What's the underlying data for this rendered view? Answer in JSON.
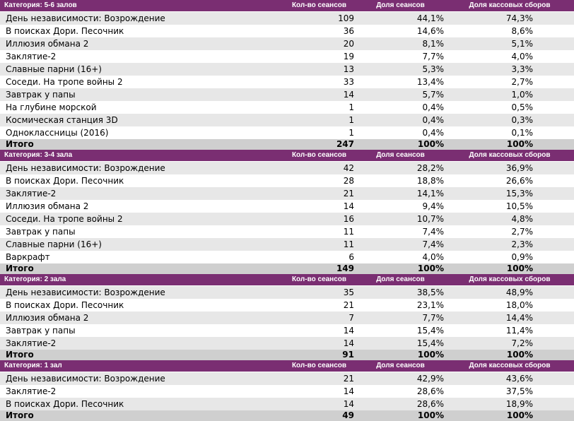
{
  "colors": {
    "header_bg": "#7a2e72",
    "header_text": "#ffffff",
    "row_alt": "#e7e7e7",
    "total_bg": "#cfcfcf"
  },
  "column_headers": {
    "sessions": "Кол-во сеансов",
    "session_share": "Доля сеансов",
    "boxoffice_share": "Доля кассовых сборов"
  },
  "sections": [
    {
      "category": "Категория: 5-6 залов",
      "rows": [
        {
          "title": "День независимости: Возрождение",
          "sessions": "109",
          "session_share": "44,1%",
          "boxoffice_share": "74,3%"
        },
        {
          "title": "В поисках Дори. Песочник",
          "sessions": "36",
          "session_share": "14,6%",
          "boxoffice_share": "8,6%"
        },
        {
          "title": "Иллюзия обмана 2",
          "sessions": "20",
          "session_share": "8,1%",
          "boxoffice_share": "5,1%"
        },
        {
          "title": "Заклятие-2",
          "sessions": "19",
          "session_share": "7,7%",
          "boxoffice_share": "4,0%"
        },
        {
          "title": "Славные парни (16+)",
          "sessions": "13",
          "session_share": "5,3%",
          "boxoffice_share": "3,3%"
        },
        {
          "title": "Соседи. На тропе войны 2",
          "sessions": "33",
          "session_share": "13,4%",
          "boxoffice_share": "2,7%"
        },
        {
          "title": "Завтрак у папы",
          "sessions": "14",
          "session_share": "5,7%",
          "boxoffice_share": "1,0%"
        },
        {
          "title": "На глубине морской",
          "sessions": "1",
          "session_share": "0,4%",
          "boxoffice_share": "0,5%"
        },
        {
          "title": "Космическая станция 3D",
          "sessions": "1",
          "session_share": "0,4%",
          "boxoffice_share": "0,3%"
        },
        {
          "title": "Одноклассницы (2016)",
          "sessions": "1",
          "session_share": "0,4%",
          "boxoffice_share": "0,1%"
        }
      ],
      "total": {
        "label": "Итого",
        "sessions": "247",
        "session_share": "100%",
        "boxoffice_share": "100%"
      }
    },
    {
      "category": "Категория: 3-4 зала",
      "rows": [
        {
          "title": "День независимости: Возрождение",
          "sessions": "42",
          "session_share": "28,2%",
          "boxoffice_share": "36,9%"
        },
        {
          "title": "В поисках Дори. Песочник",
          "sessions": "28",
          "session_share": "18,8%",
          "boxoffice_share": "26,6%"
        },
        {
          "title": "Заклятие-2",
          "sessions": "21",
          "session_share": "14,1%",
          "boxoffice_share": "15,3%"
        },
        {
          "title": "Иллюзия обмана 2",
          "sessions": "14",
          "session_share": "9,4%",
          "boxoffice_share": "10,5%"
        },
        {
          "title": "Соседи. На тропе войны 2",
          "sessions": "16",
          "session_share": "10,7%",
          "boxoffice_share": "4,8%"
        },
        {
          "title": "Завтрак у папы",
          "sessions": "11",
          "session_share": "7,4%",
          "boxoffice_share": "2,7%"
        },
        {
          "title": "Славные парни (16+)",
          "sessions": "11",
          "session_share": "7,4%",
          "boxoffice_share": "2,3%"
        },
        {
          "title": "Варкрафт",
          "sessions": "6",
          "session_share": "4,0%",
          "boxoffice_share": "0,9%"
        }
      ],
      "total": {
        "label": "Итого",
        "sessions": "149",
        "session_share": "100%",
        "boxoffice_share": "100%"
      }
    },
    {
      "category": "Категория: 2 зала",
      "rows": [
        {
          "title": "День независимости: Возрождение",
          "sessions": "35",
          "session_share": "38,5%",
          "boxoffice_share": "48,9%"
        },
        {
          "title": "В поисках Дори. Песочник",
          "sessions": "21",
          "session_share": "23,1%",
          "boxoffice_share": "18,0%"
        },
        {
          "title": "Иллюзия обмана 2",
          "sessions": "7",
          "session_share": "7,7%",
          "boxoffice_share": "14,4%"
        },
        {
          "title": "Завтрак у папы",
          "sessions": "14",
          "session_share": "15,4%",
          "boxoffice_share": "11,4%"
        },
        {
          "title": "Заклятие-2",
          "sessions": "14",
          "session_share": "15,4%",
          "boxoffice_share": "7,2%"
        }
      ],
      "total": {
        "label": "Итого",
        "sessions": "91",
        "session_share": "100%",
        "boxoffice_share": "100%"
      }
    },
    {
      "category": "Категория: 1 зал",
      "rows": [
        {
          "title": "День независимости: Возрождение",
          "sessions": "21",
          "session_share": "42,9%",
          "boxoffice_share": "43,6%"
        },
        {
          "title": "Заклятие-2",
          "sessions": "14",
          "session_share": "28,6%",
          "boxoffice_share": "37,5%"
        },
        {
          "title": "В поисках Дори. Песочник",
          "sessions": "14",
          "session_share": "28,6%",
          "boxoffice_share": "18,9%"
        }
      ],
      "total": {
        "label": "Итого",
        "sessions": "49",
        "session_share": "100%",
        "boxoffice_share": "100%"
      }
    }
  ]
}
